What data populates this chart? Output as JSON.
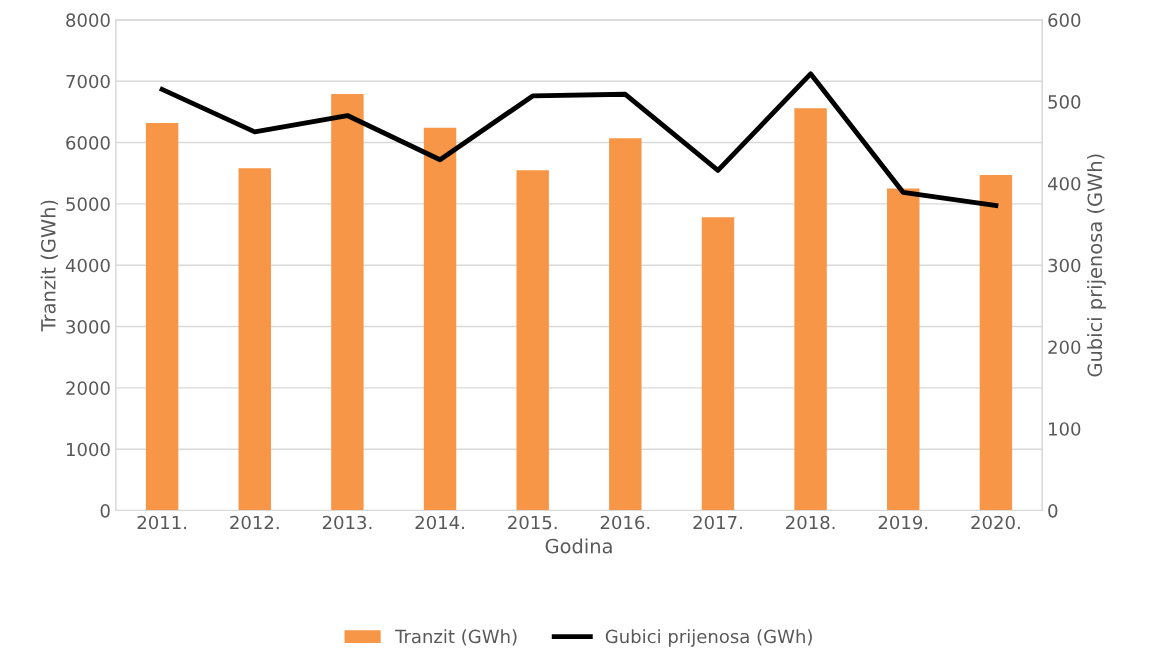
{
  "chart_data": {
    "type": "bar",
    "xlabel": "Godina",
    "ylabel": "Tranzit (GWh)",
    "y2label": "Gubici prijenosa (GWh)",
    "categories": [
      "2011.",
      "2012.",
      "2013.",
      "2014.",
      "2015.",
      "2016.",
      "2017.",
      "2018.",
      "2019.",
      "2020."
    ],
    "series": [
      {
        "name": "Tranzit (GWh)",
        "color": "#f79646",
        "values": [
          6320,
          5580,
          6790,
          6240,
          5550,
          6070,
          4780,
          6560,
          5250,
          5470
        ]
      },
      {
        "name": "Gubici prijenosa (GWh)",
        "type": "line",
        "axis": "y2",
        "color": "#000000",
        "values": [
          515,
          463,
          483,
          429,
          507,
          509,
          416,
          534,
          389,
          373
        ]
      }
    ],
    "ylim": [
      0,
      8000
    ],
    "yticks": [
      0,
      1000,
      2000,
      3000,
      4000,
      5000,
      6000,
      7000,
      8000
    ],
    "y2lim": [
      0,
      600
    ],
    "y2ticks": [
      0,
      100,
      200,
      300,
      400,
      500,
      600
    ],
    "grid": "y",
    "legend": "bottom"
  }
}
